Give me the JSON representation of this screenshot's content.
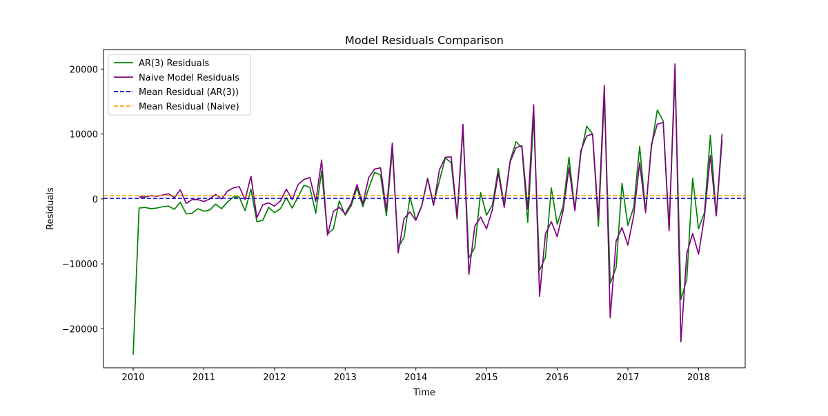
{
  "chart_data": {
    "type": "line",
    "title": "Model Residuals Comparison",
    "xlabel": "Time",
    "ylabel": "Residuals",
    "xlim": [
      2009.58,
      2018.66
    ],
    "ylim": [
      -26000,
      23000
    ],
    "xticks": [
      2010,
      2011,
      2012,
      2013,
      2014,
      2015,
      2016,
      2017,
      2018
    ],
    "xtick_labels": [
      "2010",
      "2011",
      "2012",
      "2013",
      "2014",
      "2015",
      "2016",
      "2017",
      "2018"
    ],
    "yticks": [
      -20000,
      -10000,
      0,
      10000,
      20000
    ],
    "ytick_labels": [
      "−20000",
      "−10000",
      "0",
      "10000",
      "20000"
    ],
    "grid": false,
    "legend": "top-left",
    "x_start": 2010.0,
    "x_step_months": 1,
    "series": [
      {
        "name": "AR(3) Residuals",
        "color": "#008000",
        "style": "solid",
        "values": [
          -24000,
          -1400,
          -1300,
          -1500,
          -1400,
          -1200,
          -1100,
          -1600,
          -500,
          -2300,
          -2200,
          -1500,
          -1900,
          -1700,
          -800,
          -1500,
          -500,
          300,
          300,
          -1800,
          1500,
          -3500,
          -3300,
          -1300,
          -2100,
          -1500,
          200,
          -1400,
          300,
          2100,
          1800,
          -2200,
          4300,
          -5400,
          -4600,
          -300,
          -2500,
          -1100,
          1700,
          -1200,
          1700,
          4100,
          3700,
          -2600,
          7600,
          -7500,
          -5900,
          300,
          -3200,
          -1000,
          3200,
          -800,
          2800,
          6300,
          5600,
          -3100,
          10800,
          -9100,
          -7500,
          1000,
          -2500,
          -900,
          4700,
          -1000,
          5900,
          8800,
          7900,
          -3600,
          12600,
          -11000,
          -9000,
          1700,
          -3900,
          -1100,
          6400,
          -1700,
          6900,
          11200,
          10000,
          -4200,
          16000,
          -13000,
          -10600,
          2400,
          -4100,
          -1200,
          8100,
          -1900,
          8000,
          13700,
          12000,
          -4600,
          19200,
          -15500,
          -12400,
          3200,
          -4600,
          -2100,
          9800,
          -2600,
          9000
        ]
      },
      {
        "name": "Naive Model Residuals",
        "color": "#800080",
        "style": "solid",
        "values": [
          null,
          300,
          300,
          500,
          400,
          600,
          800,
          200,
          1400,
          -700,
          -100,
          -100,
          -400,
          0,
          700,
          0,
          1200,
          1700,
          1900,
          -100,
          3500,
          -2900,
          -900,
          -600,
          -1100,
          -300,
          1500,
          -100,
          2200,
          3000,
          3300,
          -400,
          6000,
          -5600,
          -1900,
          -1300,
          -2300,
          -700,
          2200,
          -700,
          3300,
          4600,
          4800,
          -1800,
          8600,
          -8300,
          -3000,
          -2000,
          -3300,
          -1100,
          3100,
          -1000,
          4500,
          6400,
          6500,
          -2700,
          11500,
          -11600,
          -4200,
          -2800,
          -4600,
          -1600,
          4000,
          -1300,
          5700,
          7900,
          8200,
          -1600,
          14500,
          -15000,
          -5400,
          -3500,
          -5800,
          -1800,
          4800,
          -1800,
          7400,
          9700,
          10000,
          -3000,
          17500,
          -18300,
          -6500,
          -4400,
          -7100,
          -2500,
          5600,
          -2100,
          8400,
          11500,
          11800,
          -4900,
          20800,
          -22000,
          -8400,
          -5300,
          -8500,
          -2700,
          6700,
          -2600,
          10000
        ]
      },
      {
        "name": "Mean Residual (AR(3))",
        "color": "#0000cc",
        "style": "dashed",
        "constant": 100
      },
      {
        "name": "Mean Residual (Naive)",
        "color": "#ffa500",
        "style": "dashed",
        "constant": 500
      }
    ]
  }
}
